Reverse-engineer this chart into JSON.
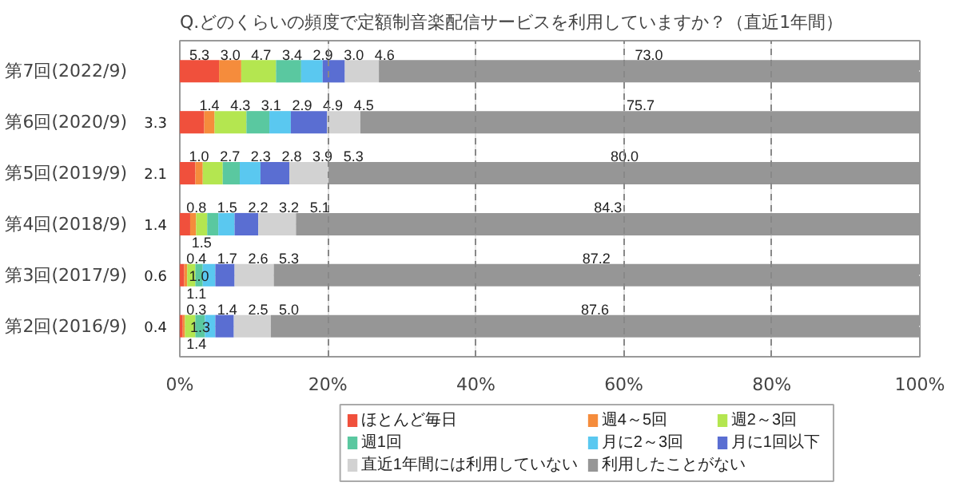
{
  "chart_data": {
    "type": "bar",
    "orientation": "horizontal",
    "stacked": true,
    "title": "Q.どのくらいの頻度で定額制音楽配信サービスを利用していますか？（直近1年間）",
    "categories": [
      "第7回(2022/9)",
      "第6回(2020/9)",
      "第5回(2019/9)",
      "第4回(2018/9)",
      "第3回(2017/9)",
      "第2回(2016/9)"
    ],
    "series": [
      {
        "name": "ほとんど毎日",
        "color": "#f0503c",
        "values": [
          5.3,
          3.3,
          2.1,
          1.4,
          0.6,
          0.4
        ],
        "value_labels": [
          "5.3",
          "3.3",
          "2.1",
          "1.4",
          "0.6",
          "0.4"
        ]
      },
      {
        "name": "週4～5回",
        "color": "#f58c3c",
        "values": [
          3.0,
          1.4,
          1.0,
          0.8,
          0.4,
          0.3
        ],
        "value_labels": [
          "3.0",
          "1.4",
          "1.0",
          "0.8",
          "0.4",
          "0.3"
        ]
      },
      {
        "name": "週2～3回",
        "color": "#b4e650",
        "values": [
          4.7,
          4.3,
          2.7,
          1.5,
          1.1,
          1.4
        ],
        "value_labels": [
          "4.7",
          "4.3",
          "2.7",
          "1.5",
          "1.1",
          "1.4"
        ]
      },
      {
        "name": "週1回",
        "color": "#5ac8a0",
        "values": [
          3.4,
          3.1,
          2.3,
          1.5,
          1.0,
          1.3
        ],
        "value_labels": [
          "3.4",
          "3.1",
          "2.3",
          "1.5",
          "1.0",
          "1.3"
        ]
      },
      {
        "name": "月に2～3回",
        "color": "#5ac8f0",
        "values": [
          2.9,
          2.9,
          2.8,
          2.2,
          1.7,
          1.4
        ],
        "value_labels": [
          "2.9",
          "2.9",
          "2.8",
          "2.2",
          "1.7",
          "1.4"
        ]
      },
      {
        "name": "月に1回以下",
        "color": "#5a6ed2",
        "values": [
          3.0,
          4.9,
          3.9,
          3.2,
          2.6,
          2.5
        ],
        "value_labels": [
          "3.0",
          "4.9",
          "3.9",
          "3.2",
          "2.6",
          "2.5"
        ]
      },
      {
        "name": "直近1年間には利用していない",
        "color": "#d2d2d2",
        "values": [
          4.6,
          4.5,
          5.3,
          5.1,
          5.3,
          5.0
        ],
        "value_labels": [
          "4.6",
          "4.5",
          "5.3",
          "5.1",
          "5.3",
          "5.0"
        ]
      },
      {
        "name": "利用したことがない",
        "color": "#969696",
        "values": [
          73.0,
          75.7,
          80.0,
          84.3,
          87.2,
          87.6
        ],
        "value_labels": [
          "73.0",
          "75.7",
          "80.0",
          "84.3",
          "87.2",
          "87.6"
        ]
      }
    ],
    "xlim": [
      0,
      100
    ],
    "xticks": [
      {
        "value": 0,
        "label": "0%"
      },
      {
        "value": 20,
        "label": "20%"
      },
      {
        "value": 40,
        "label": "40%"
      },
      {
        "value": 60,
        "label": "60%"
      },
      {
        "value": 80,
        "label": "80%"
      },
      {
        "value": 100,
        "label": "100%"
      }
    ],
    "grid": "x",
    "legend": "bottom"
  }
}
